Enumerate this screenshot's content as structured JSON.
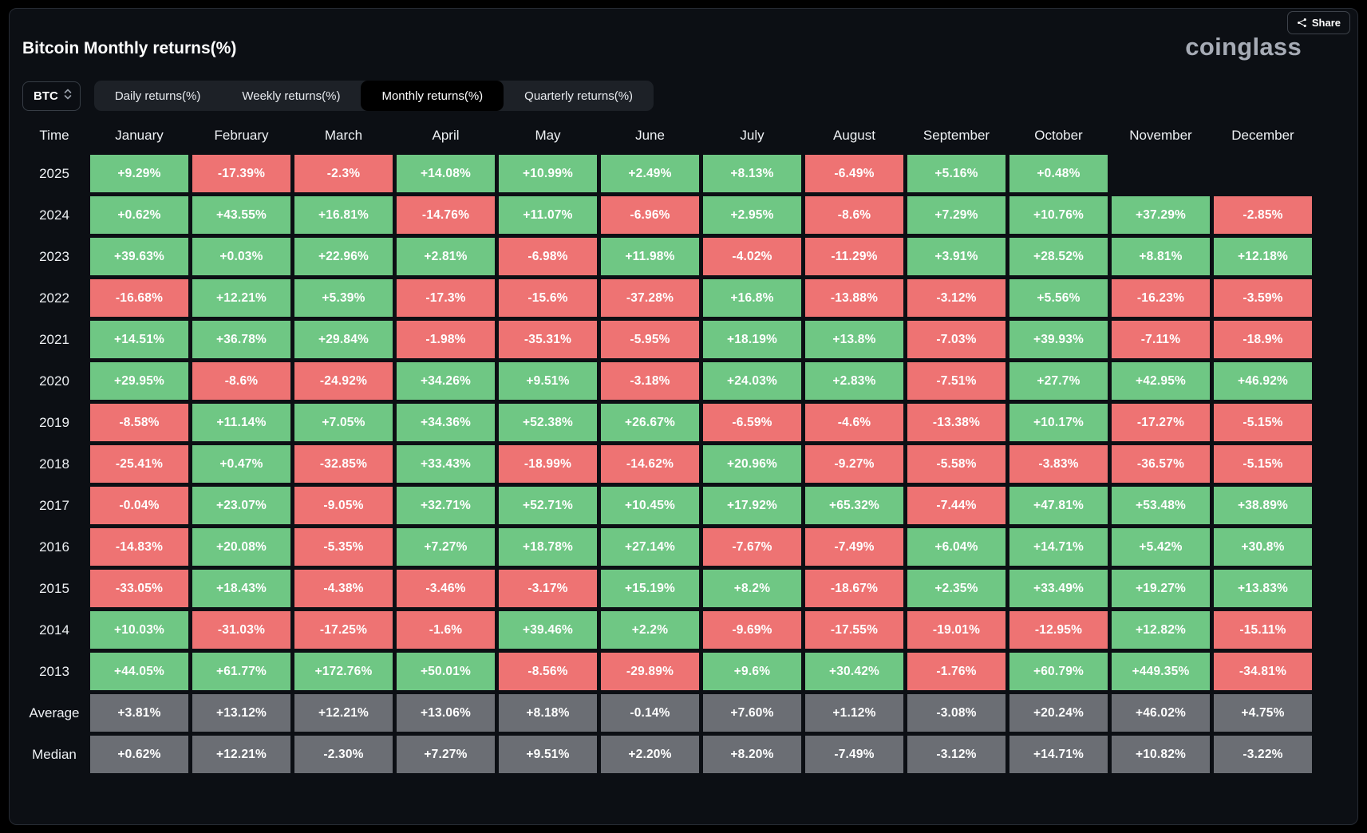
{
  "header": {
    "title": "Bitcoin Monthly returns(%)",
    "share_label": "Share",
    "logo": "coinglass"
  },
  "controls": {
    "symbol": "BTC",
    "tabs": [
      {
        "label": "Daily returns(%)",
        "active": false
      },
      {
        "label": "Weekly returns(%)",
        "active": false
      },
      {
        "label": "Monthly returns(%)",
        "active": true
      },
      {
        "label": "Quarterly returns(%)",
        "active": false
      }
    ]
  },
  "chart_data": {
    "type": "heatmap",
    "title": "Bitcoin Monthly returns(%)",
    "legend_colors": {
      "positive": "#6fc784",
      "negative": "#ee7373",
      "summary": "#6b6e74"
    },
    "columns": [
      "Time",
      "January",
      "February",
      "March",
      "April",
      "May",
      "June",
      "July",
      "August",
      "September",
      "October",
      "November",
      "December"
    ],
    "rows": [
      {
        "label": "2025",
        "kind": "year",
        "values": [
          "+9.29%",
          "-17.39%",
          "-2.3%",
          "+14.08%",
          "+10.99%",
          "+2.49%",
          "+8.13%",
          "-6.49%",
          "+5.16%",
          "+0.48%",
          "",
          ""
        ]
      },
      {
        "label": "2024",
        "kind": "year",
        "values": [
          "+0.62%",
          "+43.55%",
          "+16.81%",
          "-14.76%",
          "+11.07%",
          "-6.96%",
          "+2.95%",
          "-8.6%",
          "+7.29%",
          "+10.76%",
          "+37.29%",
          "-2.85%"
        ]
      },
      {
        "label": "2023",
        "kind": "year",
        "values": [
          "+39.63%",
          "+0.03%",
          "+22.96%",
          "+2.81%",
          "-6.98%",
          "+11.98%",
          "-4.02%",
          "-11.29%",
          "+3.91%",
          "+28.52%",
          "+8.81%",
          "+12.18%"
        ]
      },
      {
        "label": "2022",
        "kind": "year",
        "values": [
          "-16.68%",
          "+12.21%",
          "+5.39%",
          "-17.3%",
          "-15.6%",
          "-37.28%",
          "+16.8%",
          "-13.88%",
          "-3.12%",
          "+5.56%",
          "-16.23%",
          "-3.59%"
        ]
      },
      {
        "label": "2021",
        "kind": "year",
        "values": [
          "+14.51%",
          "+36.78%",
          "+29.84%",
          "-1.98%",
          "-35.31%",
          "-5.95%",
          "+18.19%",
          "+13.8%",
          "-7.03%",
          "+39.93%",
          "-7.11%",
          "-18.9%"
        ]
      },
      {
        "label": "2020",
        "kind": "year",
        "values": [
          "+29.95%",
          "-8.6%",
          "-24.92%",
          "+34.26%",
          "+9.51%",
          "-3.18%",
          "+24.03%",
          "+2.83%",
          "-7.51%",
          "+27.7%",
          "+42.95%",
          "+46.92%"
        ]
      },
      {
        "label": "2019",
        "kind": "year",
        "values": [
          "-8.58%",
          "+11.14%",
          "+7.05%",
          "+34.36%",
          "+52.38%",
          "+26.67%",
          "-6.59%",
          "-4.6%",
          "-13.38%",
          "+10.17%",
          "-17.27%",
          "-5.15%"
        ]
      },
      {
        "label": "2018",
        "kind": "year",
        "values": [
          "-25.41%",
          "+0.47%",
          "-32.85%",
          "+33.43%",
          "-18.99%",
          "-14.62%",
          "+20.96%",
          "-9.27%",
          "-5.58%",
          "-3.83%",
          "-36.57%",
          "-5.15%"
        ]
      },
      {
        "label": "2017",
        "kind": "year",
        "values": [
          "-0.04%",
          "+23.07%",
          "-9.05%",
          "+32.71%",
          "+52.71%",
          "+10.45%",
          "+17.92%",
          "+65.32%",
          "-7.44%",
          "+47.81%",
          "+53.48%",
          "+38.89%"
        ]
      },
      {
        "label": "2016",
        "kind": "year",
        "values": [
          "-14.83%",
          "+20.08%",
          "-5.35%",
          "+7.27%",
          "+18.78%",
          "+27.14%",
          "-7.67%",
          "-7.49%",
          "+6.04%",
          "+14.71%",
          "+5.42%",
          "+30.8%"
        ]
      },
      {
        "label": "2015",
        "kind": "year",
        "values": [
          "-33.05%",
          "+18.43%",
          "-4.38%",
          "-3.46%",
          "-3.17%",
          "+15.19%",
          "+8.2%",
          "-18.67%",
          "+2.35%",
          "+33.49%",
          "+19.27%",
          "+13.83%"
        ]
      },
      {
        "label": "2014",
        "kind": "year",
        "values": [
          "+10.03%",
          "-31.03%",
          "-17.25%",
          "-1.6%",
          "+39.46%",
          "+2.2%",
          "-9.69%",
          "-17.55%",
          "-19.01%",
          "-12.95%",
          "+12.82%",
          "-15.11%"
        ]
      },
      {
        "label": "2013",
        "kind": "year",
        "values": [
          "+44.05%",
          "+61.77%",
          "+172.76%",
          "+50.01%",
          "-8.56%",
          "-29.89%",
          "+9.6%",
          "+30.42%",
          "-1.76%",
          "+60.79%",
          "+449.35%",
          "-34.81%"
        ]
      },
      {
        "label": "Average",
        "kind": "summary",
        "values": [
          "+3.81%",
          "+13.12%",
          "+12.21%",
          "+13.06%",
          "+8.18%",
          "-0.14%",
          "+7.60%",
          "+1.12%",
          "-3.08%",
          "+20.24%",
          "+46.02%",
          "+4.75%"
        ]
      },
      {
        "label": "Median",
        "kind": "summary",
        "values": [
          "+0.62%",
          "+12.21%",
          "-2.30%",
          "+7.27%",
          "+9.51%",
          "+2.20%",
          "+8.20%",
          "-7.49%",
          "-3.12%",
          "+14.71%",
          "+10.82%",
          "-3.22%"
        ]
      }
    ]
  }
}
